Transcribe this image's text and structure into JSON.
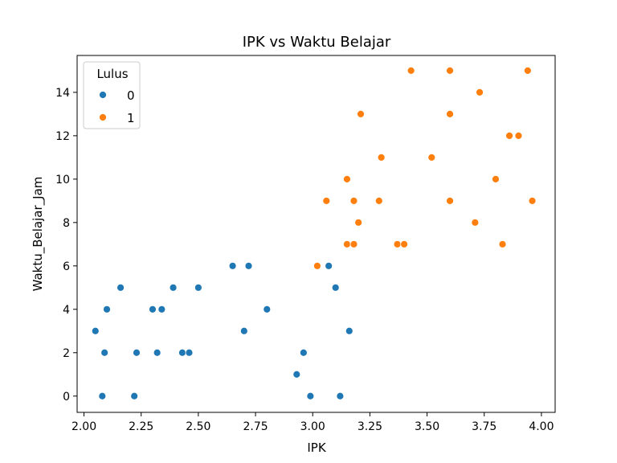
{
  "chart_data": {
    "type": "scatter",
    "title": "IPK vs Waktu Belajar",
    "xlabel": "IPK",
    "ylabel": "Waktu_Belajar_Jam",
    "xlim": [
      1.97,
      4.06
    ],
    "ylim": [
      -0.75,
      15.7
    ],
    "xticks": [
      2.0,
      2.25,
      2.5,
      2.75,
      3.0,
      3.25,
      3.5,
      3.75,
      4.0
    ],
    "xtick_labels": [
      "2.00",
      "2.25",
      "2.50",
      "2.75",
      "3.00",
      "3.25",
      "3.50",
      "3.75",
      "4.00"
    ],
    "yticks": [
      0,
      2,
      4,
      6,
      8,
      10,
      12,
      14
    ],
    "ytick_labels": [
      "0",
      "2",
      "4",
      "6",
      "8",
      "10",
      "12",
      "14"
    ],
    "grid": false,
    "legend": {
      "title": "Lulus",
      "placement": "top-left"
    },
    "series": [
      {
        "name": "0",
        "color": "#1f77b4",
        "points": [
          [
            2.05,
            3
          ],
          [
            2.08,
            0
          ],
          [
            2.09,
            2
          ],
          [
            2.1,
            4
          ],
          [
            2.16,
            5
          ],
          [
            2.22,
            0
          ],
          [
            2.23,
            2
          ],
          [
            2.3,
            4
          ],
          [
            2.32,
            2
          ],
          [
            2.34,
            4
          ],
          [
            2.39,
            5
          ],
          [
            2.43,
            2
          ],
          [
            2.46,
            2
          ],
          [
            2.5,
            5
          ],
          [
            2.65,
            6
          ],
          [
            2.7,
            3
          ],
          [
            2.72,
            6
          ],
          [
            2.8,
            4
          ],
          [
            2.93,
            1
          ],
          [
            2.96,
            2
          ],
          [
            2.99,
            0
          ],
          [
            3.07,
            6
          ],
          [
            3.1,
            5
          ],
          [
            3.12,
            0
          ],
          [
            3.16,
            3
          ]
        ]
      },
      {
        "name": "1",
        "color": "#ff7f0e",
        "points": [
          [
            3.02,
            6
          ],
          [
            3.06,
            9
          ],
          [
            3.15,
            7
          ],
          [
            3.15,
            10
          ],
          [
            3.18,
            9
          ],
          [
            3.18,
            7
          ],
          [
            3.2,
            8
          ],
          [
            3.21,
            13
          ],
          [
            3.29,
            9
          ],
          [
            3.3,
            11
          ],
          [
            3.37,
            7
          ],
          [
            3.4,
            7
          ],
          [
            3.43,
            15
          ],
          [
            3.52,
            11
          ],
          [
            3.6,
            15
          ],
          [
            3.6,
            13
          ],
          [
            3.6,
            9
          ],
          [
            3.71,
            8
          ],
          [
            3.73,
            14
          ],
          [
            3.8,
            10
          ],
          [
            3.83,
            7
          ],
          [
            3.86,
            12
          ],
          [
            3.9,
            12
          ],
          [
            3.94,
            15
          ],
          [
            3.96,
            9
          ]
        ]
      }
    ]
  }
}
